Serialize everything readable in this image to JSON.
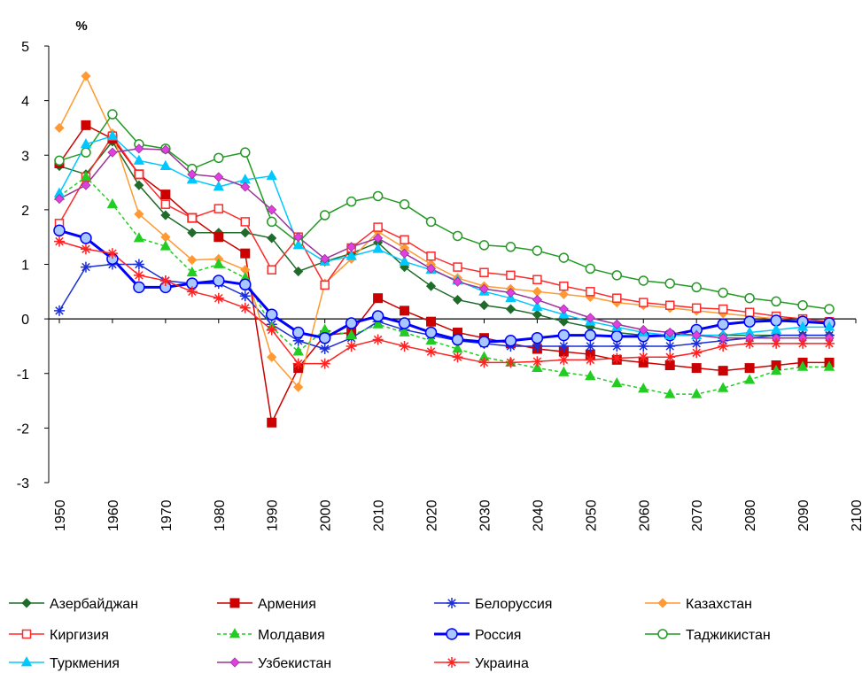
{
  "chart_data": {
    "type": "line",
    "y_label": "%",
    "x": [
      1950,
      1955,
      1960,
      1965,
      1970,
      1975,
      1980,
      1985,
      1990,
      1995,
      2000,
      2005,
      2010,
      2015,
      2020,
      2025,
      2030,
      2035,
      2040,
      2045,
      2050,
      2055,
      2060,
      2065,
      2070,
      2075,
      2080,
      2085,
      2090,
      2095
    ],
    "xlim": [
      1948,
      2100
    ],
    "xticks": [
      1950,
      1960,
      1970,
      1980,
      1990,
      2000,
      2010,
      2020,
      2030,
      2040,
      2050,
      2060,
      2070,
      2080,
      2090,
      2100
    ],
    "ylim": [
      -3,
      5
    ],
    "yticks": [
      -3,
      -2,
      -1,
      0,
      1,
      2,
      3,
      4,
      5
    ],
    "zero_line": true,
    "legend": "bottom",
    "series": [
      {
        "name": "Азербайджан",
        "color": "#1f6b2a",
        "marker": "diamond",
        "marker_color": "#1f6b2a",
        "dash": false,
        "width": 1.5,
        "values": [
          2.8,
          2.65,
          3.25,
          2.45,
          1.9,
          1.58,
          1.58,
          1.58,
          1.48,
          0.87,
          1.05,
          1.2,
          1.4,
          0.95,
          0.6,
          0.35,
          0.25,
          0.18,
          0.08,
          -0.05,
          -0.15,
          -0.25,
          -0.3,
          -0.3,
          -0.3,
          -0.3,
          -0.3,
          -0.3,
          -0.3,
          -0.3
        ]
      },
      {
        "name": "Армения",
        "color": "#cc0000",
        "marker": "square",
        "marker_color": "#cc0000",
        "dash": false,
        "width": 1.5,
        "values": [
          2.85,
          3.55,
          3.3,
          2.65,
          2.28,
          1.85,
          1.5,
          1.2,
          -1.9,
          -0.9,
          -0.3,
          -0.25,
          0.38,
          0.15,
          -0.05,
          -0.25,
          -0.35,
          -0.45,
          -0.55,
          -0.6,
          -0.65,
          -0.75,
          -0.8,
          -0.85,
          -0.9,
          -0.95,
          -0.9,
          -0.85,
          -0.8,
          -0.8
        ]
      },
      {
        "name": "Белоруссия",
        "color": "#1c2fd8",
        "marker": "asterisk",
        "marker_color": "#1c2fd8",
        "dash": false,
        "width": 1.5,
        "values": [
          0.15,
          0.95,
          1.0,
          1.0,
          0.7,
          0.65,
          0.65,
          0.42,
          -0.1,
          -0.4,
          -0.55,
          -0.35,
          -0.05,
          -0.2,
          -0.3,
          -0.4,
          -0.45,
          -0.5,
          -0.5,
          -0.5,
          -0.5,
          -0.5,
          -0.5,
          -0.5,
          -0.45,
          -0.4,
          -0.35,
          -0.3,
          -0.3,
          -0.3
        ]
      },
      {
        "name": "Казахстан",
        "color": "#ff9933",
        "marker": "diamond",
        "marker_color": "#ff9933",
        "dash": false,
        "width": 1.5,
        "values": [
          3.5,
          4.45,
          3.4,
          1.92,
          1.5,
          1.08,
          1.1,
          0.9,
          -0.7,
          -1.25,
          0.65,
          1.1,
          1.6,
          1.3,
          1.0,
          0.75,
          0.6,
          0.55,
          0.5,
          0.45,
          0.4,
          0.3,
          0.25,
          0.2,
          0.15,
          0.1,
          0.05,
          0.0,
          -0.05,
          -0.1
        ]
      },
      {
        "name": "Киргизия",
        "color": "#ff2a2a",
        "marker": "square-open",
        "marker_color": "#ff2a2a",
        "dash": false,
        "width": 1.5,
        "values": [
          1.75,
          2.6,
          3.35,
          2.65,
          2.1,
          1.85,
          2.02,
          1.78,
          0.9,
          1.5,
          0.62,
          1.3,
          1.68,
          1.45,
          1.15,
          0.95,
          0.85,
          0.8,
          0.72,
          0.6,
          0.5,
          0.38,
          0.3,
          0.25,
          0.2,
          0.18,
          0.12,
          0.05,
          0.0,
          -0.05
        ]
      },
      {
        "name": "Молдавия",
        "color": "#22cc22",
        "marker": "triangle",
        "marker_color": "#22cc22",
        "dash": true,
        "width": 1.5,
        "values": [
          2.25,
          2.6,
          2.1,
          1.48,
          1.33,
          0.85,
          1.0,
          0.75,
          -0.15,
          -0.6,
          -0.2,
          -0.3,
          -0.1,
          -0.25,
          -0.4,
          -0.55,
          -0.7,
          -0.8,
          -0.9,
          -0.98,
          -1.05,
          -1.18,
          -1.28,
          -1.38,
          -1.38,
          -1.27,
          -1.12,
          -0.95,
          -0.88,
          -0.88
        ]
      },
      {
        "name": "Россия",
        "color": "#0000ff",
        "marker": "circle",
        "marker_color": "#a8c8ff",
        "dash": false,
        "width": 3,
        "values": [
          1.62,
          1.48,
          1.1,
          0.58,
          0.58,
          0.65,
          0.7,
          0.63,
          0.08,
          -0.25,
          -0.35,
          -0.08,
          0.05,
          -0.08,
          -0.25,
          -0.38,
          -0.42,
          -0.4,
          -0.35,
          -0.3,
          -0.3,
          -0.32,
          -0.32,
          -0.3,
          -0.2,
          -0.1,
          -0.05,
          -0.03,
          -0.05,
          -0.08
        ]
      },
      {
        "name": "Таджикистан",
        "color": "#229922",
        "marker": "circle-open",
        "marker_color": "#229922",
        "dash": false,
        "width": 1.5,
        "values": [
          2.9,
          3.05,
          3.75,
          3.2,
          3.12,
          2.75,
          2.95,
          3.05,
          1.78,
          1.4,
          1.9,
          2.15,
          2.25,
          2.1,
          1.78,
          1.52,
          1.35,
          1.32,
          1.25,
          1.12,
          0.92,
          0.8,
          0.7,
          0.65,
          0.58,
          0.48,
          0.38,
          0.32,
          0.25,
          0.18
        ]
      },
      {
        "name": "Туркмения",
        "color": "#00c8ff",
        "marker": "triangle",
        "marker_color": "#00c8ff",
        "dash": false,
        "width": 1.5,
        "values": [
          2.3,
          3.2,
          3.35,
          2.9,
          2.8,
          2.55,
          2.42,
          2.55,
          2.62,
          1.35,
          1.05,
          1.15,
          1.28,
          1.05,
          0.9,
          0.7,
          0.5,
          0.38,
          0.22,
          0.08,
          -0.05,
          -0.15,
          -0.25,
          -0.3,
          -0.3,
          -0.3,
          -0.25,
          -0.2,
          -0.15,
          -0.15
        ]
      },
      {
        "name": "Узбекистан",
        "color": "#993399",
        "marker": "diamond",
        "marker_color": "#e040e0",
        "dash": false,
        "width": 1.5,
        "values": [
          2.2,
          2.45,
          3.05,
          3.12,
          3.1,
          2.65,
          2.6,
          2.42,
          2.0,
          1.5,
          1.1,
          1.32,
          1.48,
          1.2,
          0.92,
          0.68,
          0.55,
          0.48,
          0.35,
          0.18,
          0.02,
          -0.1,
          -0.2,
          -0.25,
          -0.3,
          -0.35,
          -0.35,
          -0.35,
          -0.35,
          -0.35
        ]
      },
      {
        "name": "Украина",
        "color": "#ff2222",
        "marker": "asterisk",
        "marker_color": "#ff2222",
        "dash": false,
        "width": 1.5,
        "values": [
          1.42,
          1.28,
          1.2,
          0.8,
          0.7,
          0.5,
          0.38,
          0.2,
          -0.2,
          -0.82,
          -0.82,
          -0.5,
          -0.38,
          -0.5,
          -0.6,
          -0.7,
          -0.8,
          -0.8,
          -0.78,
          -0.75,
          -0.75,
          -0.72,
          -0.7,
          -0.7,
          -0.62,
          -0.5,
          -0.45,
          -0.45,
          -0.45,
          -0.45
        ]
      }
    ]
  }
}
